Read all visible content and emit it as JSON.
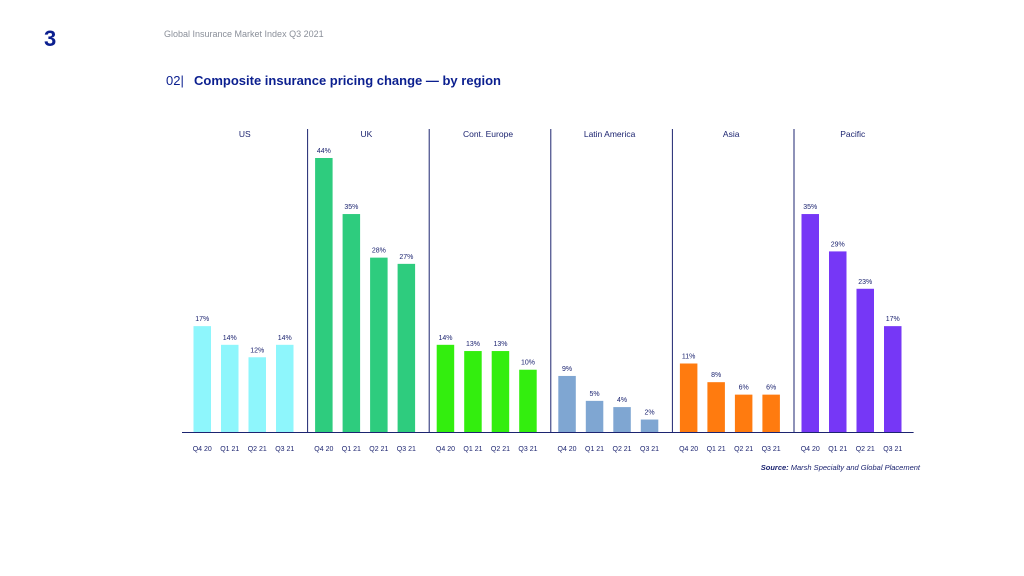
{
  "page": {
    "number": "3",
    "running_title": "Global Insurance Market Index Q3 2021",
    "section_number": "02|",
    "section_title": "Composite insurance pricing change — by region",
    "source_label": "Source:",
    "source_text": "Marsh Specialty and Global Placement"
  },
  "chart_data": {
    "type": "bar",
    "title": "Composite insurance pricing change — by region",
    "xlabel": "",
    "ylabel": "",
    "ylim": [
      0,
      50
    ],
    "grid": false,
    "legend": "none",
    "value_suffix": "%",
    "groups": [
      {
        "name": "US",
        "color": "#8ef6fc",
        "categories": [
          "Q4 20",
          "Q1 21",
          "Q2 21",
          "Q3 21"
        ],
        "values": [
          17,
          14,
          12,
          14
        ]
      },
      {
        "name": "UK",
        "color": "#2ecc7e",
        "categories": [
          "Q4 20",
          "Q1 21",
          "Q2 21",
          "Q3 21"
        ],
        "values": [
          44,
          35,
          28,
          27
        ]
      },
      {
        "name": "Cont. Europe",
        "color": "#33ee0e",
        "categories": [
          "Q4 20",
          "Q1 21",
          "Q2 21",
          "Q3 21"
        ],
        "values": [
          14,
          13,
          13,
          10
        ]
      },
      {
        "name": "Latin America",
        "color": "#7fa6d2",
        "categories": [
          "Q4 20",
          "Q1 21",
          "Q2 21",
          "Q3 21"
        ],
        "values": [
          9,
          5,
          4,
          2
        ]
      },
      {
        "name": "Asia",
        "color": "#ff7b0f",
        "categories": [
          "Q4 20",
          "Q1 21",
          "Q2 21",
          "Q3 21"
        ],
        "values": [
          11,
          8,
          6,
          6
        ]
      },
      {
        "name": "Pacific",
        "color": "#7637f6",
        "categories": [
          "Q4 20",
          "Q1 21",
          "Q2 21",
          "Q3 21"
        ],
        "values": [
          35,
          29,
          23,
          17
        ]
      }
    ],
    "colors": {
      "text": "#1c2470",
      "axis": "#1c2470",
      "divider": "#1c2470"
    }
  }
}
